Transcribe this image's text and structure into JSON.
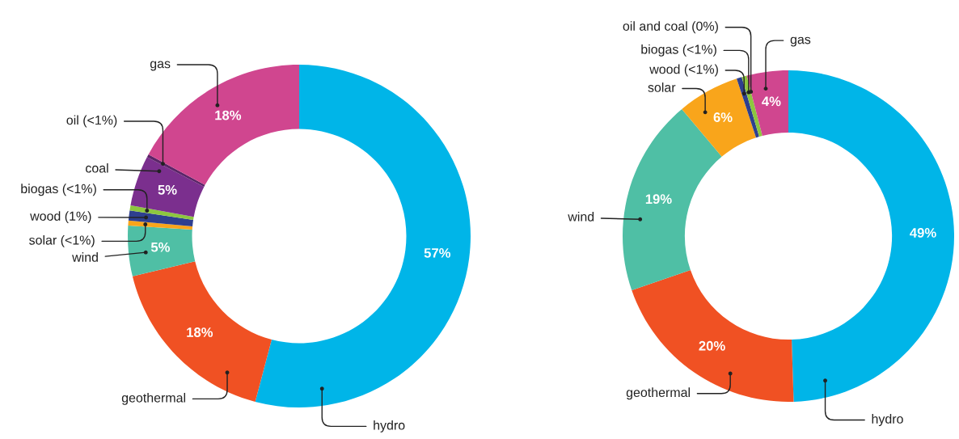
{
  "chart_data": [
    {
      "type": "donut",
      "categories": [
        "hydro",
        "geothermal",
        "wind",
        "solar (<1%)",
        "wood (1%)",
        "biogas (<1%)",
        "coal",
        "oil (<1%)",
        "gas"
      ],
      "values": [
        57,
        18,
        5,
        0.5,
        1,
        0.5,
        5,
        0.3,
        18
      ],
      "colors": [
        "#00b5e8",
        "#f05123",
        "#4fbfa5",
        "#f9a51b",
        "#2e3f8f",
        "#8dc63f",
        "#7b2f8e",
        "#5b2468",
        "#d0468f"
      ],
      "value_labels": [
        "57%",
        "18%",
        "5%",
        null,
        null,
        null,
        "5%",
        null,
        "18%"
      ],
      "legend": false
    },
    {
      "type": "donut",
      "categories": [
        "hydro",
        "geothermal",
        "wind",
        "solar",
        "wood (<1%)",
        "biogas (<1%)",
        "oil and coal (0%)",
        "gas"
      ],
      "values": [
        49,
        20,
        19,
        6,
        0.5,
        0.5,
        0,
        4
      ],
      "colors": [
        "#00b5e8",
        "#f05123",
        "#4fbfa5",
        "#f9a51b",
        "#2e3f8f",
        "#8dc63f",
        "#7b2f8e",
        "#d0468f"
      ],
      "value_labels": [
        "49%",
        "20%",
        "19%",
        "6%",
        null,
        null,
        null,
        "4%"
      ],
      "legend": false
    }
  ]
}
